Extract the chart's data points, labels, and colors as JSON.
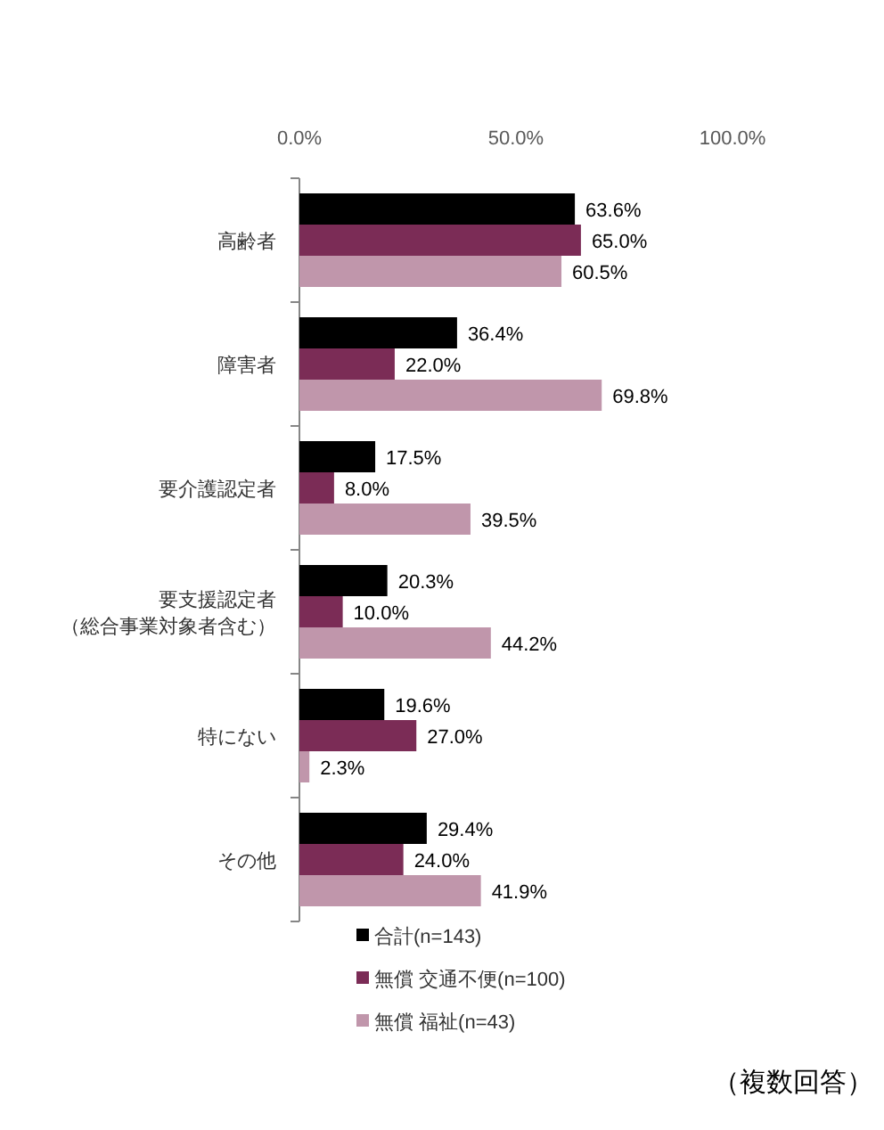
{
  "chart_data": {
    "type": "bar",
    "orientation": "horizontal",
    "categories": [
      "高齢者",
      "障害者",
      "要介護認定者",
      "要支援認定者（総合事業対象者含む）",
      "特にない",
      "その他"
    ],
    "series": [
      {
        "name": "合計(n=143)",
        "color": "#000000",
        "values": [
          63.6,
          36.4,
          17.5,
          20.3,
          19.6,
          29.4
        ],
        "value_labels": [
          "63.6%",
          "36.4%",
          "17.5%",
          "20.3%",
          "19.6%",
          "29.4%"
        ]
      },
      {
        "name": "無償 交通不便(n=100)",
        "color": "#7b2c56",
        "values": [
          65.0,
          22.0,
          8.0,
          10.0,
          27.0,
          24.0
        ],
        "value_labels": [
          "65.0%",
          "22.0%",
          "8.0%",
          "10.0%",
          "27.0%",
          "24.0%"
        ]
      },
      {
        "name": "無償 福祉(n=43)",
        "color": "#c096ab",
        "values": [
          60.5,
          69.8,
          39.5,
          44.2,
          2.3,
          41.9
        ],
        "value_labels": [
          "60.5%",
          "69.8%",
          "39.5%",
          "44.2%",
          "2.3%",
          "41.9%"
        ]
      }
    ],
    "xlim": [
      0,
      100
    ],
    "xticks": [
      {
        "value": 0,
        "label": "0.0%"
      },
      {
        "value": 50,
        "label": "50.0%"
      },
      {
        "value": 100,
        "label": "100.0%"
      }
    ],
    "legend": "bottom",
    "annotations": [
      "（複数回答）"
    ]
  }
}
